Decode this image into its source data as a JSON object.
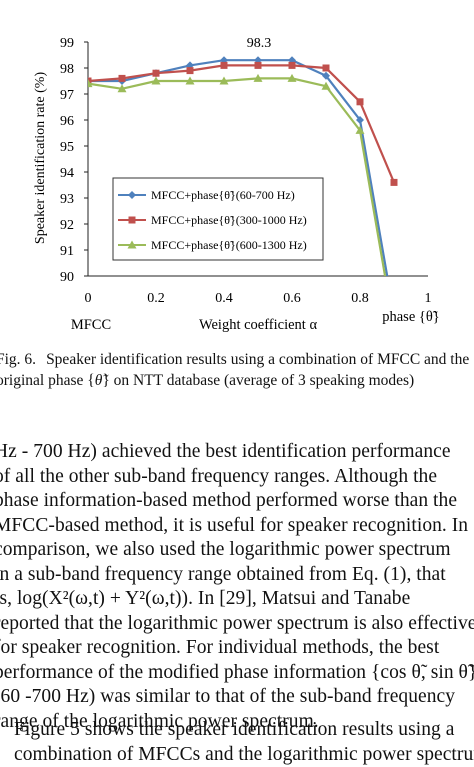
{
  "chart_data": {
    "type": "line",
    "title": "",
    "annotation": "98.3",
    "xlabel": "Weight coefficient α",
    "ylabel": "Speaker identification rate (%)",
    "x_ticks": [
      "0",
      "0.2",
      "0.4",
      "0.6",
      "0.8",
      "1"
    ],
    "x_left_label": "MFCC",
    "x_right_label": "phase {θ̃}",
    "y_ticks": [
      "90",
      "91",
      "92",
      "93",
      "94",
      "95",
      "96",
      "97",
      "98",
      "99"
    ],
    "xlim": [
      0,
      1
    ],
    "ylim": [
      90,
      99
    ],
    "grid": false,
    "legend_position": "lower-left",
    "x": [
      0,
      0.1,
      0.2,
      0.3,
      0.4,
      0.5,
      0.6,
      0.7,
      0.8,
      0.9
    ],
    "series": [
      {
        "name": "MFCC+phase{θ̃}(60-700 Hz)",
        "color": "#4f81bd",
        "marker": "diamond",
        "values": [
          97.5,
          97.5,
          97.8,
          98.1,
          98.3,
          98.3,
          98.3,
          97.7,
          96.0,
          88.5
        ]
      },
      {
        "name": "MFCC+phase{θ̃}(300-1000 Hz)",
        "color": "#c0504d",
        "marker": "square",
        "values": [
          97.5,
          97.6,
          97.8,
          97.9,
          98.1,
          98.1,
          98.1,
          98.0,
          96.7,
          93.6
        ]
      },
      {
        "name": "MFCC+phase{θ̃}(600-1300 Hz)",
        "color": "#9bbb59",
        "marker": "triangle",
        "values": [
          97.4,
          97.2,
          97.5,
          97.5,
          97.5,
          97.6,
          97.6,
          97.3,
          95.6,
          88.0
        ]
      }
    ]
  },
  "caption": {
    "label": "Fig. 6.",
    "line1": "Speaker identification results using a combination of MFCC and the",
    "line2_prefix": "original phase {",
    "line2_symbol": "θ̃",
    "line2_suffix": "} on NTT database (average of 3 speaking modes)"
  },
  "paragraph1": [
    "Hz - 700 Hz) achieved the best identification performance",
    "of all the other sub-band frequency ranges. Although the",
    "phase information-based method performed worse than the",
    "MFCC-based method, it is useful for speaker recognition. In",
    "comparison, we also used the logarithmic power spectrum",
    "in a sub-band frequency range obtained from Eq. (1), that",
    "is, log(X²(ω,t) + Y²(ω,t)). In [29], Matsui and Tanabe",
    "reported that the logarithmic power spectrum is also effective",
    "for speaker recognition. For individual methods, the best",
    "performance of the modified phase information {cos θ̃, sin θ̃}",
    "(60 -700 Hz) was similar to that of the sub-band frequency",
    "range of the logarithmic power spectrum."
  ],
  "paragraph2": [
    "Figure 5 shows the speaker identification results using a",
    "combination of MFCCs and the logarithmic power spectrum"
  ]
}
